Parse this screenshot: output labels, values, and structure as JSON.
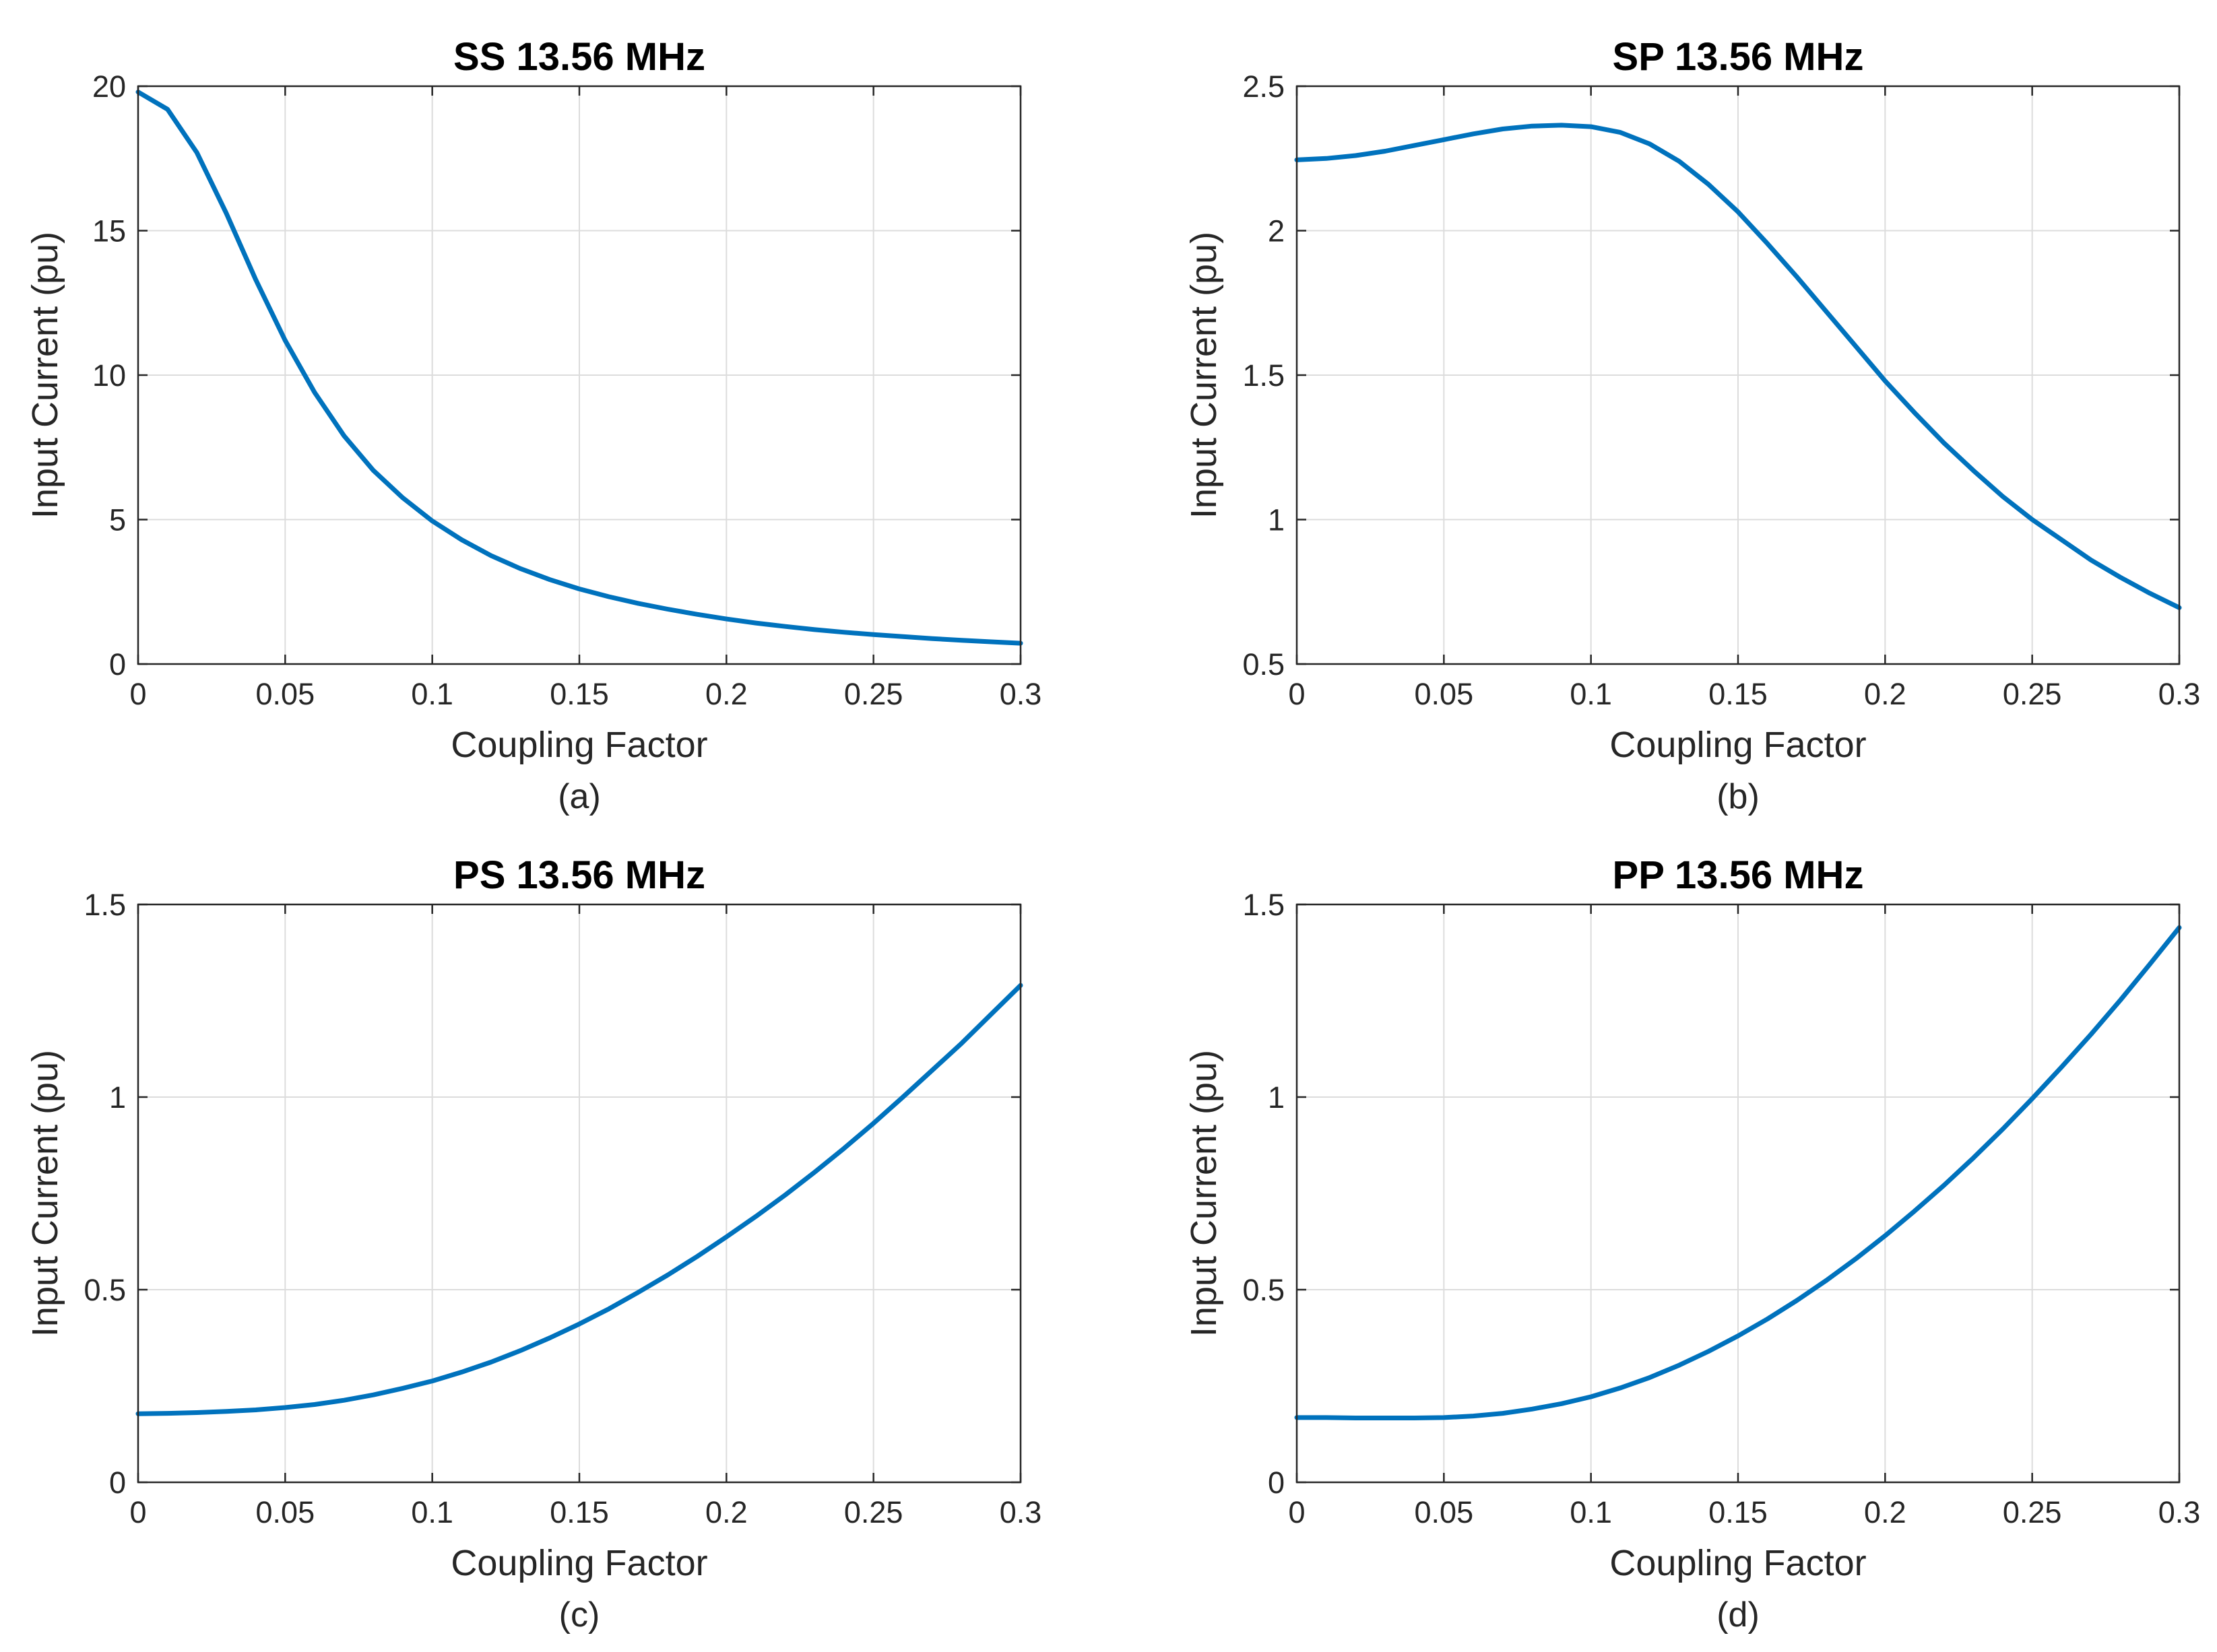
{
  "chart_data": [
    {
      "type": "line",
      "title": "SS 13.56 MHz",
      "xlabel": "Coupling Factor",
      "ylabel": "Input Current (pu)",
      "caption": "(a)",
      "xlim": [
        0,
        0.3
      ],
      "ylim": [
        0,
        20
      ],
      "xticks": [
        0,
        0.05,
        0.1,
        0.15,
        0.2,
        0.25,
        0.3
      ],
      "yticks": [
        0,
        5,
        10,
        15,
        20
      ],
      "grid": true,
      "color": "#0072BD",
      "series": [
        {
          "name": "SS",
          "x": [
            0,
            0.01,
            0.02,
            0.03,
            0.04,
            0.05,
            0.06,
            0.07,
            0.08,
            0.09,
            0.1,
            0.11,
            0.12,
            0.13,
            0.14,
            0.15,
            0.16,
            0.17,
            0.18,
            0.19,
            0.2,
            0.21,
            0.22,
            0.23,
            0.24,
            0.25,
            0.26,
            0.27,
            0.28,
            0.29,
            0.3
          ],
          "y": [
            19.8,
            19.2,
            17.7,
            15.6,
            13.3,
            11.2,
            9.4,
            7.9,
            6.7,
            5.75,
            4.95,
            4.3,
            3.75,
            3.3,
            2.92,
            2.6,
            2.33,
            2.1,
            1.9,
            1.72,
            1.56,
            1.42,
            1.3,
            1.19,
            1.1,
            1.02,
            0.95,
            0.88,
            0.82,
            0.77,
            0.72
          ]
        }
      ]
    },
    {
      "type": "line",
      "title": "SP 13.56 MHz",
      "xlabel": "Coupling Factor",
      "ylabel": "Input Current (pu)",
      "caption": "(b)",
      "xlim": [
        0,
        0.3
      ],
      "ylim": [
        0.5,
        2.5
      ],
      "xticks": [
        0,
        0.05,
        0.1,
        0.15,
        0.2,
        0.25,
        0.3
      ],
      "yticks": [
        0.5,
        1,
        1.5,
        2,
        2.5
      ],
      "grid": true,
      "color": "#0072BD",
      "series": [
        {
          "name": "SP",
          "x": [
            0,
            0.01,
            0.02,
            0.03,
            0.04,
            0.05,
            0.06,
            0.07,
            0.08,
            0.09,
            0.1,
            0.11,
            0.12,
            0.13,
            0.14,
            0.15,
            0.16,
            0.17,
            0.18,
            0.19,
            0.2,
            0.21,
            0.22,
            0.23,
            0.24,
            0.25,
            0.26,
            0.27,
            0.28,
            0.29,
            0.3
          ],
          "y": [
            2.245,
            2.25,
            2.26,
            2.275,
            2.295,
            2.315,
            2.335,
            2.352,
            2.362,
            2.365,
            2.36,
            2.34,
            2.3,
            2.24,
            2.16,
            2.065,
            1.955,
            1.84,
            1.72,
            1.6,
            1.48,
            1.37,
            1.265,
            1.17,
            1.08,
            1.0,
            0.93,
            0.86,
            0.8,
            0.745,
            0.695
          ]
        }
      ]
    },
    {
      "type": "line",
      "title": "PS 13.56 MHz",
      "xlabel": "Coupling Factor",
      "ylabel": "Input Current (pu)",
      "caption": "(c)",
      "xlim": [
        0,
        0.3
      ],
      "ylim": [
        0,
        1.5
      ],
      "xticks": [
        0,
        0.05,
        0.1,
        0.15,
        0.2,
        0.25,
        0.3
      ],
      "yticks": [
        0,
        0.5,
        1,
        1.5
      ],
      "grid": true,
      "color": "#0072BD",
      "series": [
        {
          "name": "PS",
          "x": [
            0,
            0.01,
            0.02,
            0.03,
            0.04,
            0.05,
            0.06,
            0.07,
            0.08,
            0.09,
            0.1,
            0.11,
            0.12,
            0.13,
            0.14,
            0.15,
            0.16,
            0.17,
            0.18,
            0.19,
            0.2,
            0.21,
            0.22,
            0.23,
            0.24,
            0.25,
            0.26,
            0.27,
            0.28,
            0.29,
            0.3
          ],
          "y": [
            0.178,
            0.179,
            0.181,
            0.184,
            0.188,
            0.194,
            0.202,
            0.213,
            0.227,
            0.244,
            0.263,
            0.286,
            0.312,
            0.342,
            0.375,
            0.411,
            0.45,
            0.493,
            0.538,
            0.586,
            0.637,
            0.69,
            0.746,
            0.805,
            0.867,
            0.932,
            1.0,
            1.07,
            1.14,
            1.215,
            1.29
          ]
        }
      ]
    },
    {
      "type": "line",
      "title": "PP 13.56 MHz",
      "xlabel": "Coupling Factor",
      "ylabel": "Input Current (pu)",
      "caption": "(d)",
      "xlim": [
        0,
        0.3
      ],
      "ylim": [
        0,
        1.5
      ],
      "xticks": [
        0,
        0.05,
        0.1,
        0.15,
        0.2,
        0.25,
        0.3
      ],
      "yticks": [
        0,
        0.5,
        1,
        1.5
      ],
      "grid": true,
      "color": "#0072BD",
      "series": [
        {
          "name": "PP",
          "x": [
            0,
            0.01,
            0.02,
            0.03,
            0.04,
            0.05,
            0.06,
            0.07,
            0.08,
            0.09,
            0.1,
            0.11,
            0.12,
            0.13,
            0.14,
            0.15,
            0.16,
            0.17,
            0.18,
            0.19,
            0.2,
            0.21,
            0.22,
            0.23,
            0.24,
            0.25,
            0.26,
            0.27,
            0.28,
            0.29,
            0.3
          ],
          "y": [
            0.168,
            0.168,
            0.167,
            0.167,
            0.167,
            0.168,
            0.172,
            0.179,
            0.19,
            0.204,
            0.222,
            0.245,
            0.272,
            0.304,
            0.34,
            0.38,
            0.424,
            0.472,
            0.524,
            0.58,
            0.64,
            0.704,
            0.771,
            0.842,
            0.917,
            0.996,
            1.078,
            1.163,
            1.252,
            1.345,
            1.44
          ]
        }
      ]
    }
  ]
}
